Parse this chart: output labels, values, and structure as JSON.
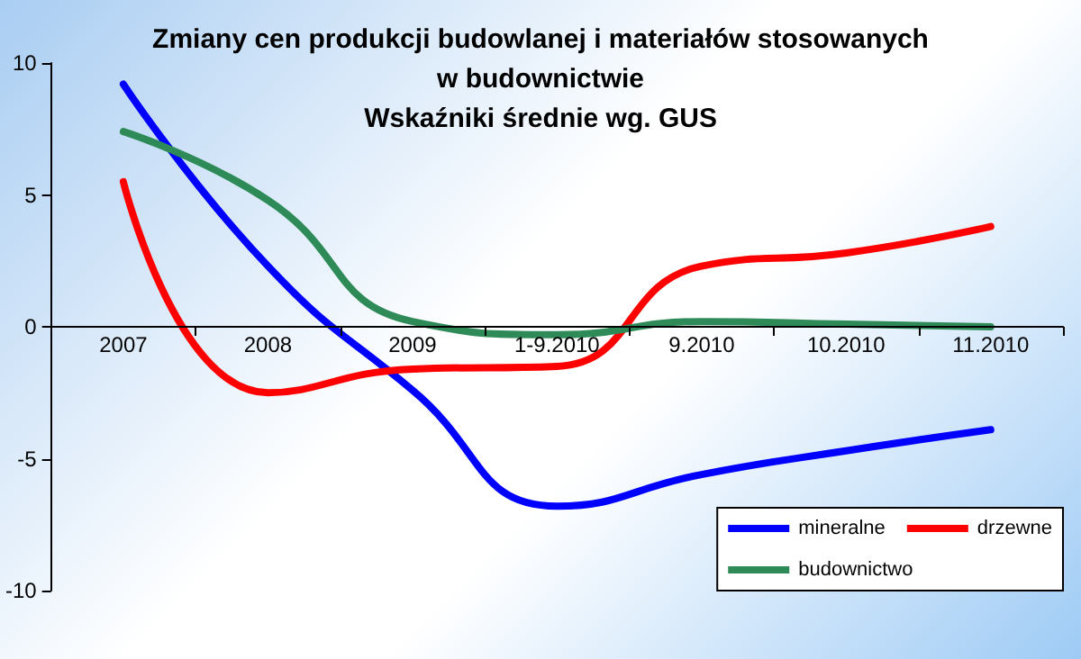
{
  "chart_data": {
    "type": "line",
    "title": "Zmiany cen produkcji budowlanej i materiałów stosowanych\nw budownictwie\nWskaźniki średnie wg. GUS",
    "categories": [
      "2007",
      "2008",
      "2009",
      "1-9.2010",
      "9.2010",
      "10.2010",
      "11.2010"
    ],
    "series": [
      {
        "name": "mineralne",
        "color": "#0000ff",
        "values": [
          9.2,
          2.3,
          -2.4,
          -6.8,
          -5.6,
          -4.7,
          -3.9
        ]
      },
      {
        "name": "drzewne",
        "color": "#ff0000",
        "values": [
          5.5,
          -2.5,
          -1.6,
          -1.5,
          2.3,
          2.8,
          3.8
        ]
      },
      {
        "name": "budownictwo",
        "color": "#2e8b57",
        "values": [
          7.4,
          4.8,
          0.2,
          -0.3,
          0.2,
          0.1,
          0.0
        ]
      }
    ],
    "ylim": [
      -10,
      10
    ],
    "yticks": [
      -10,
      -5,
      0,
      5,
      10
    ],
    "grid": false,
    "legend": "bottom right",
    "marker": "none",
    "line_style": "solid"
  }
}
